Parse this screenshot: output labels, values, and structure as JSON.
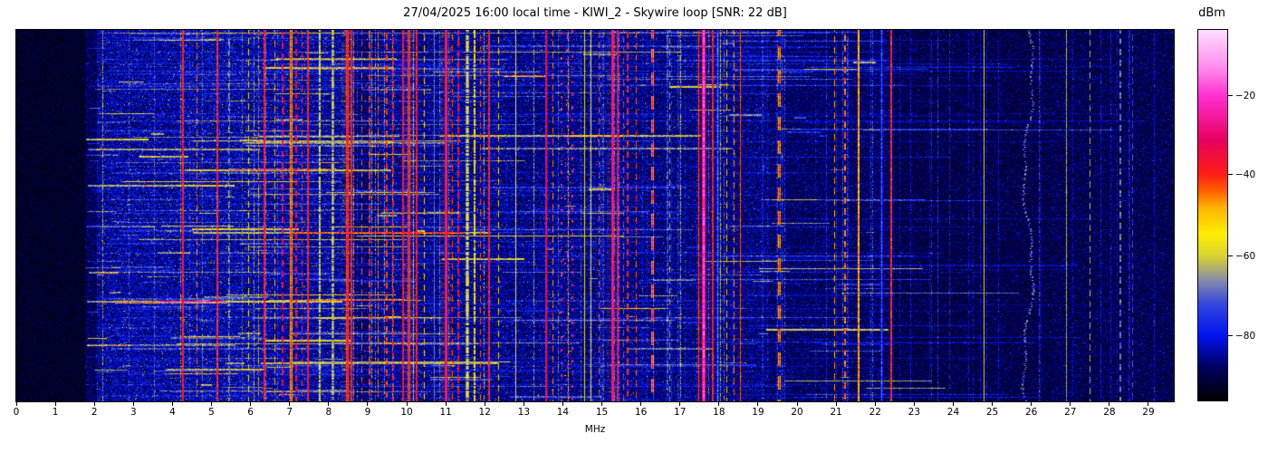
{
  "title": "27/04/2025 16:00 local time - KIWI_2 - Skywire loop [SNR: 22 dB]",
  "chart_data": {
    "type": "heatmap",
    "subtype": "hf-spectrogram-waterfall",
    "title": "27/04/2025 16:00 local time - KIWI_2 - Skywire loop [SNR: 22 dB]",
    "xlabel": "MHz",
    "x_range": [
      0,
      29.65
    ],
    "x_ticks": [
      0,
      1,
      2,
      3,
      4,
      5,
      6,
      7,
      8,
      9,
      10,
      11,
      12,
      13,
      14,
      15,
      16,
      17,
      18,
      19,
      20,
      21,
      22,
      23,
      24,
      25,
      26,
      27,
      28,
      29
    ],
    "colorbar": {
      "label": "dBm",
      "ticks": [
        {
          "label": "−20",
          "value": -20,
          "frac_from_top": 0.178
        },
        {
          "label": "−40",
          "value": -40,
          "frac_from_top": 0.391
        },
        {
          "label": "−60",
          "value": -60,
          "frac_from_top": 0.611
        },
        {
          "label": "−80",
          "value": -80,
          "frac_from_top": 0.826
        }
      ],
      "approx_range_dbm": [
        -97,
        -3
      ],
      "colormap_stops": [
        [
          0.0,
          "#000000"
        ],
        [
          0.09,
          "#000060"
        ],
        [
          0.174,
          "#0014f0"
        ],
        [
          0.26,
          "#3346dd"
        ],
        [
          0.32,
          "#8087b0"
        ],
        [
          0.389,
          "#d8d232"
        ],
        [
          0.45,
          "#ffee00"
        ],
        [
          0.52,
          "#ffb300"
        ],
        [
          0.56,
          "#ff6a00"
        ],
        [
          0.609,
          "#ff1e14"
        ],
        [
          0.7,
          "#e8005e"
        ],
        [
          0.822,
          "#ff2fd0"
        ],
        [
          0.9,
          "#ff8df0"
        ],
        [
          1.0,
          "#ffdcff"
        ]
      ]
    },
    "noise_bands": [
      {
        "x0": 0.0,
        "x1": 1.75,
        "base": 0.035,
        "amp": 0.05
      },
      {
        "x0": 1.75,
        "x1": 2.05,
        "base": 0.07,
        "amp": 0.09
      },
      {
        "x0": 2.05,
        "x1": 4.2,
        "base": 0.11,
        "amp": 0.15
      },
      {
        "x0": 4.2,
        "x1": 6.3,
        "base": 0.115,
        "amp": 0.15
      },
      {
        "x0": 6.3,
        "x1": 8.6,
        "base": 0.11,
        "amp": 0.14
      },
      {
        "x0": 8.6,
        "x1": 9.3,
        "base": 0.08,
        "amp": 0.11
      },
      {
        "x0": 9.3,
        "x1": 12.6,
        "base": 0.1,
        "amp": 0.13
      },
      {
        "x0": 12.6,
        "x1": 16.2,
        "base": 0.095,
        "amp": 0.13
      },
      {
        "x0": 16.2,
        "x1": 19.3,
        "base": 0.09,
        "amp": 0.12
      },
      {
        "x0": 19.3,
        "x1": 22.5,
        "base": 0.075,
        "amp": 0.1
      },
      {
        "x0": 22.5,
        "x1": 26.5,
        "base": 0.06,
        "amp": 0.09
      },
      {
        "x0": 26.5,
        "x1": 29.65,
        "base": 0.065,
        "amp": 0.1
      }
    ],
    "streaks": {
      "count": 520,
      "mhz_min": 1.8,
      "mhz_span": 20,
      "boost_max": 0.26,
      "long_count": 36
    },
    "minor_carriers": {
      "count": 95
    },
    "signals": [
      {
        "f": 4.27,
        "v": 0.63,
        "w": 2,
        "s": "solid"
      },
      {
        "f": 4.62,
        "v": 0.55,
        "w": 1,
        "s": "dash"
      },
      {
        "f": 5.15,
        "v": 0.62,
        "w": 2,
        "s": "solid"
      },
      {
        "f": 5.45,
        "v": 0.35,
        "w": 1,
        "s": "dash"
      },
      {
        "f": 5.95,
        "v": 0.45,
        "w": 1,
        "s": "dash"
      },
      {
        "f": 6.36,
        "v": 0.63,
        "w": 2,
        "s": "solid"
      },
      {
        "f": 6.62,
        "v": 0.52,
        "w": 1,
        "s": "dash"
      },
      {
        "f": 6.82,
        "v": 0.7,
        "w": 2,
        "s": "dash"
      },
      {
        "f": 7.05,
        "v": 0.65,
        "w": 3,
        "s": "solid"
      },
      {
        "f": 7.18,
        "v": 0.66,
        "w": 2,
        "s": "dash"
      },
      {
        "f": 7.32,
        "v": 0.6,
        "w": 1,
        "s": "dash"
      },
      {
        "f": 7.47,
        "v": 0.62,
        "w": 2,
        "s": "solid"
      },
      {
        "f": 7.77,
        "v": 0.4,
        "w": 2,
        "s": "haze"
      },
      {
        "f": 8.1,
        "v": 0.45,
        "w": 3,
        "s": "haze"
      },
      {
        "f": 8.47,
        "v": 0.72,
        "w": 3,
        "s": "solid",
        "g": 1
      },
      {
        "f": 8.58,
        "v": 0.63,
        "w": 2,
        "s": "solid"
      },
      {
        "f": 8.86,
        "v": 0.58,
        "w": 1,
        "s": "dash"
      },
      {
        "f": 9.05,
        "v": 0.6,
        "w": 2,
        "s": "dash"
      },
      {
        "f": 9.28,
        "v": 0.55,
        "w": 1,
        "s": "dash"
      },
      {
        "f": 9.5,
        "v": 0.6,
        "w": 2,
        "s": "dash"
      },
      {
        "f": 9.66,
        "v": 0.62,
        "w": 2,
        "s": "dash"
      },
      {
        "f": 9.9,
        "v": 0.66,
        "w": 2,
        "s": "solid"
      },
      {
        "f": 10.05,
        "v": 0.72,
        "w": 3,
        "s": "solid",
        "g": 1
      },
      {
        "f": 10.25,
        "v": 0.63,
        "w": 2,
        "s": "solid"
      },
      {
        "f": 10.45,
        "v": 0.48,
        "w": 1,
        "s": "dash"
      },
      {
        "f": 10.7,
        "v": 0.3,
        "w": 1,
        "s": "solid"
      },
      {
        "f": 11.0,
        "v": 0.77,
        "w": 3,
        "s": "solid",
        "g": 1
      },
      {
        "f": 11.18,
        "v": 0.58,
        "w": 1,
        "s": "dash"
      },
      {
        "f": 11.32,
        "v": 0.66,
        "w": 2,
        "s": "dash"
      },
      {
        "f": 11.55,
        "v": 0.44,
        "w": 4,
        "s": "haze"
      },
      {
        "f": 11.75,
        "v": 0.46,
        "w": 2,
        "s": "haze"
      },
      {
        "f": 11.9,
        "v": 0.58,
        "w": 1,
        "s": "dash"
      },
      {
        "f": 12.1,
        "v": 0.63,
        "w": 2,
        "s": "solid"
      },
      {
        "f": 12.35,
        "v": 0.48,
        "w": 1,
        "s": "dash"
      },
      {
        "f": 12.8,
        "v": 0.46,
        "w": 1,
        "s": "solid"
      },
      {
        "f": 13.57,
        "v": 0.7,
        "w": 2,
        "s": "solid"
      },
      {
        "f": 13.75,
        "v": 0.55,
        "w": 1,
        "s": "dash"
      },
      {
        "f": 14.05,
        "v": 0.52,
        "w": 16,
        "s": "speckle"
      },
      {
        "f": 13.97,
        "v": 0.77,
        "w": 2,
        "s": "dot"
      },
      {
        "f": 14.12,
        "v": 0.77,
        "w": 2,
        "s": "dot"
      },
      {
        "f": 14.24,
        "v": 0.75,
        "w": 2,
        "s": "dot"
      },
      {
        "f": 14.55,
        "v": 0.44,
        "w": 1,
        "s": "solid"
      },
      {
        "f": 14.73,
        "v": 0.42,
        "w": 1,
        "s": "solid"
      },
      {
        "f": 14.94,
        "v": 0.58,
        "w": 1,
        "s": "dash"
      },
      {
        "f": 15.28,
        "v": 0.78,
        "w": 3,
        "s": "solid",
        "g": 1
      },
      {
        "f": 15.4,
        "v": 0.72,
        "w": 2,
        "s": "solid"
      },
      {
        "f": 15.55,
        "v": 0.6,
        "w": 1,
        "s": "dash"
      },
      {
        "f": 15.66,
        "v": 0.62,
        "w": 2,
        "s": "dash"
      },
      {
        "f": 15.87,
        "v": 0.58,
        "w": 1,
        "s": "dash"
      },
      {
        "f": 16.29,
        "v": 0.66,
        "w": 3,
        "s": "longdash"
      },
      {
        "f": 16.75,
        "v": 0.35,
        "w": 1,
        "s": "dash"
      },
      {
        "f": 17.49,
        "v": 0.58,
        "w": 1,
        "s": "solid"
      },
      {
        "f": 17.62,
        "v": 0.84,
        "w": 4,
        "s": "solid",
        "g": 1
      },
      {
        "f": 17.84,
        "v": 0.63,
        "w": 2,
        "s": "solid"
      },
      {
        "f": 17.98,
        "v": 0.3,
        "w": 3,
        "s": "solid"
      },
      {
        "f": 18.2,
        "v": 0.5,
        "w": 1,
        "s": "dash"
      },
      {
        "f": 18.38,
        "v": 0.55,
        "w": 1,
        "s": "dash"
      },
      {
        "f": 18.56,
        "v": 0.58,
        "w": 1,
        "s": "solid"
      },
      {
        "f": 19.54,
        "v": 0.65,
        "w": 3,
        "s": "longdash"
      },
      {
        "f": 20.95,
        "v": 0.52,
        "w": 1,
        "s": "dash"
      },
      {
        "f": 21.23,
        "v": 0.56,
        "w": 2,
        "s": "dash"
      },
      {
        "f": 21.58,
        "v": 0.52,
        "w": 2,
        "s": "solid"
      },
      {
        "f": 22.16,
        "v": 0.28,
        "w": 3,
        "s": "solid"
      },
      {
        "f": 22.41,
        "v": 0.62,
        "w": 2,
        "s": "solid"
      },
      {
        "f": 24.8,
        "v": 0.42,
        "w": 1,
        "s": "solid"
      },
      {
        "f": 25.9,
        "v": 0.3,
        "w": 2,
        "s": "drift"
      },
      {
        "f": 26.91,
        "v": 0.35,
        "w": 1,
        "s": "solid"
      },
      {
        "f": 27.5,
        "v": 0.36,
        "w": 1,
        "s": "dash"
      },
      {
        "f": 28.28,
        "v": 0.3,
        "w": 2,
        "s": "dash"
      },
      {
        "f": 28.6,
        "v": 0.26,
        "w": 1,
        "s": "dash"
      }
    ]
  }
}
